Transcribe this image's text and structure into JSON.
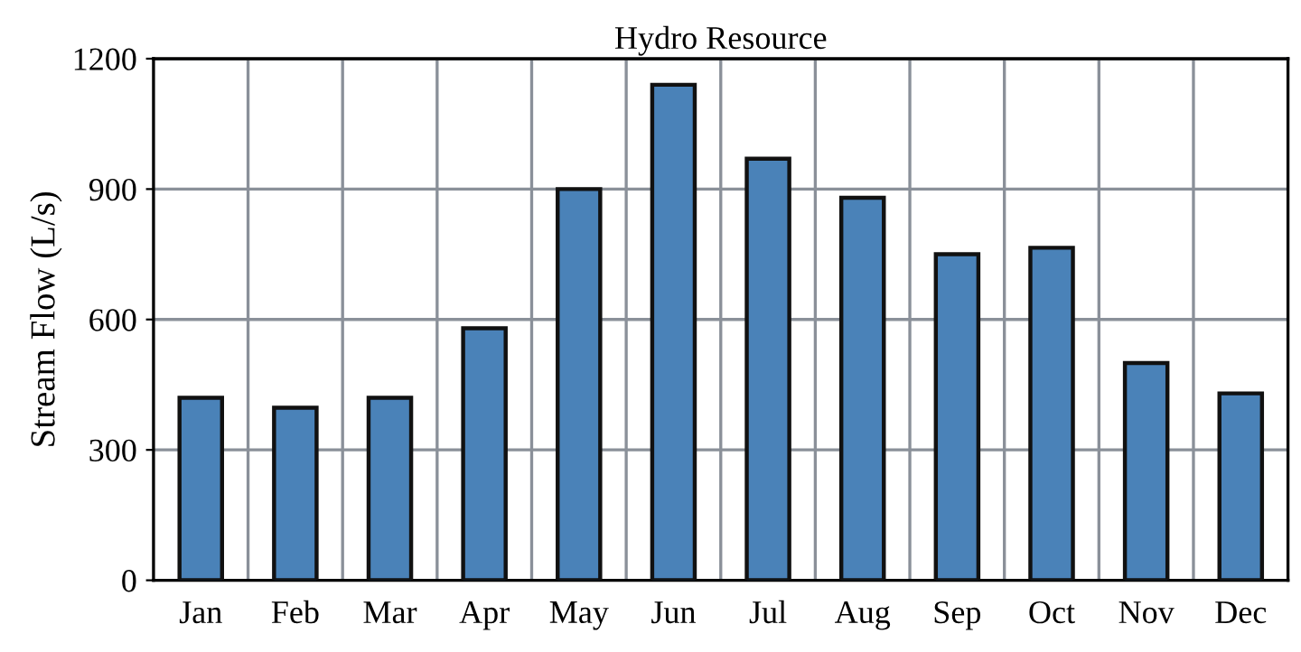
{
  "chart_data": {
    "type": "bar",
    "title": "Hydro Resource",
    "ylabel": "Stream Flow (L/s)",
    "categories": [
      "Jan",
      "Feb",
      "Mar",
      "Apr",
      "May",
      "Jun",
      "Jul",
      "Aug",
      "Sep",
      "Oct",
      "Nov",
      "Dec"
    ],
    "values": [
      420,
      397,
      420,
      580,
      900,
      1140,
      970,
      880,
      750,
      765,
      500,
      430
    ],
    "color": "#4a82b8",
    "ylim": [
      0,
      1200
    ],
    "yticks": [
      0,
      300,
      600,
      900,
      1200
    ],
    "grid": true
  }
}
